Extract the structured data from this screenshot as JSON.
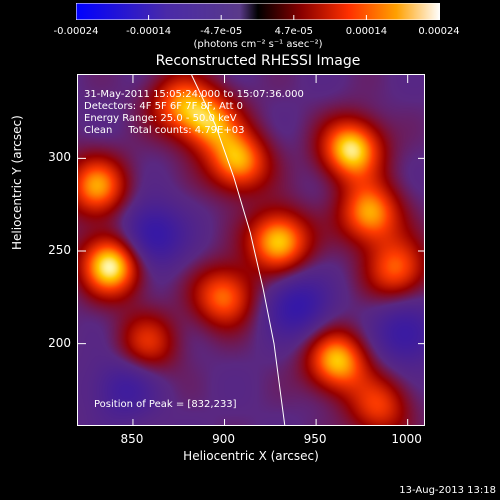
{
  "colorbar": {
    "ticks": [
      "-0.00024",
      "-0.00014",
      "-4.7e-05",
      "4.7e-05",
      "0.00014",
      "0.00024"
    ],
    "units": "(photons cm⁻² s⁻¹ asec⁻²)",
    "range": [
      -0.00024,
      0.00024
    ]
  },
  "chart_data": {
    "type": "heatmap",
    "title": "Reconstructed RHESSI Image",
    "xlabel": "Heliocentric X (arcsec)",
    "ylabel": "Heliocentric Y (arcsec)",
    "xlim": [
      820,
      1010
    ],
    "ylim": [
      155,
      345
    ],
    "xticks": [
      850,
      900,
      950,
      1000
    ],
    "yticks": [
      200,
      250,
      300
    ],
    "xtick_labels": [
      "850",
      "900",
      "950",
      "1000"
    ],
    "ytick_labels": [
      "200",
      "250",
      "300"
    ],
    "peak_position": [
      832,
      233
    ],
    "annotations": {
      "time": "31-May-2011 15:05:24.000 to 15:07:36.000",
      "detectors": "Detectors: 4F 5F 6F 7F 8F, Att 0",
      "energy": "Energy Range: 25.0 - 50.0 keV",
      "clean": "Clean     Total counts: 4.79E+03",
      "peak": "Position of Peak = [832,233]"
    },
    "limb_points": [
      [
        882,
        345
      ],
      [
        895,
        318
      ],
      [
        905,
        290
      ],
      [
        914,
        260
      ],
      [
        921,
        230
      ],
      [
        927,
        200
      ],
      [
        931,
        170
      ],
      [
        933,
        155
      ]
    ],
    "sources": [
      {
        "x": 838,
        "y": 242,
        "value": 1.0
      },
      {
        "x": 830,
        "y": 285,
        "value": 0.75
      },
      {
        "x": 892,
        "y": 320,
        "value": 0.7
      },
      {
        "x": 908,
        "y": 298,
        "value": 0.8
      },
      {
        "x": 930,
        "y": 255,
        "value": 0.9
      },
      {
        "x": 970,
        "y": 305,
        "value": 0.95
      },
      {
        "x": 980,
        "y": 270,
        "value": 0.8
      },
      {
        "x": 962,
        "y": 190,
        "value": 0.85
      },
      {
        "x": 900,
        "y": 225,
        "value": 0.7
      },
      {
        "x": 875,
        "y": 330,
        "value": 0.6
      },
      {
        "x": 995,
        "y": 240,
        "value": 0.65
      },
      {
        "x": 985,
        "y": 165,
        "value": 0.55
      },
      {
        "x": 858,
        "y": 200,
        "value": 0.5
      },
      {
        "x": 860,
        "y": 258,
        "value": -0.6
      },
      {
        "x": 940,
        "y": 220,
        "value": -0.55
      },
      {
        "x": 1000,
        "y": 205,
        "value": -0.5
      },
      {
        "x": 845,
        "y": 175,
        "value": -0.4
      }
    ]
  },
  "timestamp": "13-Aug-2013 13:18"
}
